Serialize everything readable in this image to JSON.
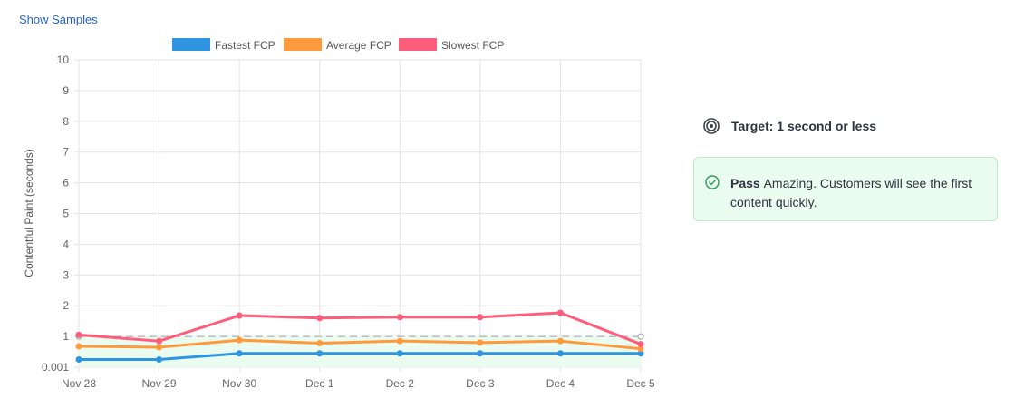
{
  "header": {
    "show_samples_label": "Show Samples"
  },
  "target": {
    "label": "Target: 1 second or less",
    "icon": "target-icon"
  },
  "status": {
    "label": "Pass",
    "message": "Amazing. Customers will see the first content quickly.",
    "icon": "check-circle-icon",
    "accent": "#2e9b53"
  },
  "chart_data": {
    "type": "line",
    "categories": [
      "Nov 28",
      "Nov 29",
      "Nov 30",
      "Dec 1",
      "Dec 2",
      "Dec 3",
      "Dec 4",
      "Dec 5"
    ],
    "ylabel": "Contentful Paint  (seconds)",
    "xlabel": "",
    "y_ticks": [
      "0.001",
      "1",
      "2",
      "3",
      "4",
      "5",
      "6",
      "7",
      "8",
      "9",
      "10"
    ],
    "ylim": [
      0,
      10
    ],
    "grid": true,
    "legend_position": "top",
    "target_line": 1,
    "series": [
      {
        "name": "Fastest FCP",
        "color": "#2f95e0",
        "values": [
          0.25,
          0.25,
          0.45,
          0.45,
          0.45,
          0.45,
          0.45,
          0.45
        ]
      },
      {
        "name": "Average FCP",
        "color": "#ff9a3c",
        "values": [
          0.68,
          0.65,
          0.88,
          0.78,
          0.85,
          0.8,
          0.85,
          0.6
        ]
      },
      {
        "name": "Slowest FCP",
        "color": "#ff5d7c",
        "values": [
          1.05,
          0.85,
          1.68,
          1.6,
          1.63,
          1.63,
          1.77,
          0.75
        ]
      }
    ]
  }
}
